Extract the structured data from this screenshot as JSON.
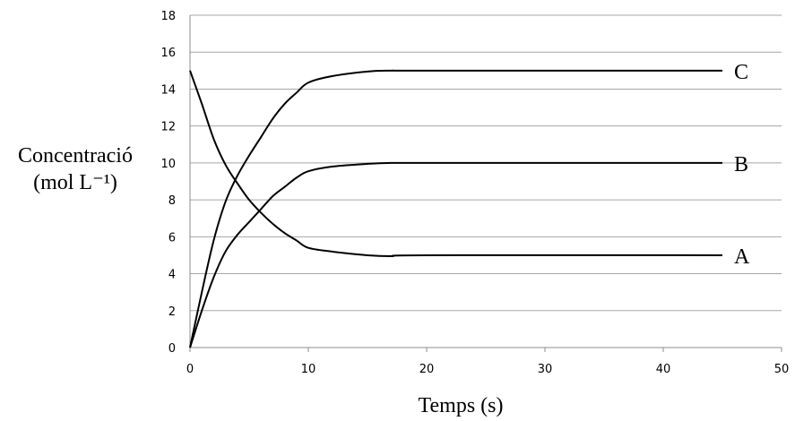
{
  "chart_data": {
    "type": "line",
    "xlabel": "Temps (s)",
    "ylabel": [
      "Concentració",
      "(mol L⁻¹)"
    ],
    "xlim": [
      0,
      50
    ],
    "ylim": [
      0,
      18
    ],
    "xticks": [
      0,
      10,
      20,
      30,
      40,
      50
    ],
    "yticks": [
      0,
      2,
      4,
      6,
      8,
      10,
      12,
      14,
      16,
      18
    ],
    "grid": "horizontal",
    "series": [
      {
        "name": "A",
        "x": [
          0,
          1,
          2,
          3,
          4,
          5,
          6,
          7,
          8,
          9,
          10,
          12,
          15,
          17,
          20,
          45
        ],
        "y": [
          15,
          13.2,
          11.3,
          9.9,
          8.9,
          8.0,
          7.3,
          6.7,
          6.2,
          5.8,
          5.4,
          5.2,
          5.0,
          4.95,
          5.0,
          5.0
        ]
      },
      {
        "name": "B",
        "x": [
          0,
          1,
          2,
          3,
          4,
          5,
          6,
          7,
          8,
          9,
          10,
          12,
          15,
          17,
          20,
          45
        ],
        "y": [
          0,
          2.0,
          3.8,
          5.2,
          6.1,
          6.8,
          7.5,
          8.2,
          8.7,
          9.2,
          9.55,
          9.8,
          9.95,
          10.0,
          10.0,
          10.0
        ]
      },
      {
        "name": "C",
        "x": [
          0,
          1,
          2,
          3,
          4,
          5,
          6,
          7,
          8,
          9,
          10,
          12,
          15,
          17,
          20,
          45
        ],
        "y": [
          0,
          3.0,
          5.8,
          7.9,
          9.3,
          10.4,
          11.4,
          12.4,
          13.2,
          13.8,
          14.35,
          14.7,
          14.95,
          15.0,
          15.0,
          15.0
        ]
      }
    ]
  }
}
